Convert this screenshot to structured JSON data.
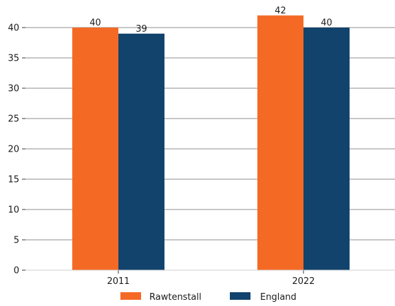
{
  "chart_data": {
    "type": "bar",
    "title": "",
    "xlabel": "",
    "ylabel": "",
    "categories": [
      "2011",
      "2022"
    ],
    "series": [
      {
        "name": "Rawtenstall",
        "values": [
          40,
          42
        ],
        "color": "#F46A25"
      },
      {
        "name": "England",
        "values": [
          39,
          40
        ],
        "color": "#12436D"
      }
    ],
    "ylim": [
      0,
      42
    ],
    "yticks": [
      0,
      5,
      10,
      15,
      20,
      25,
      30,
      35,
      40
    ],
    "grid": true,
    "legend_position": "bottom-center",
    "data_labels": true
  },
  "colors": {
    "grid": "#8c8c8c",
    "axis": "#333333"
  }
}
